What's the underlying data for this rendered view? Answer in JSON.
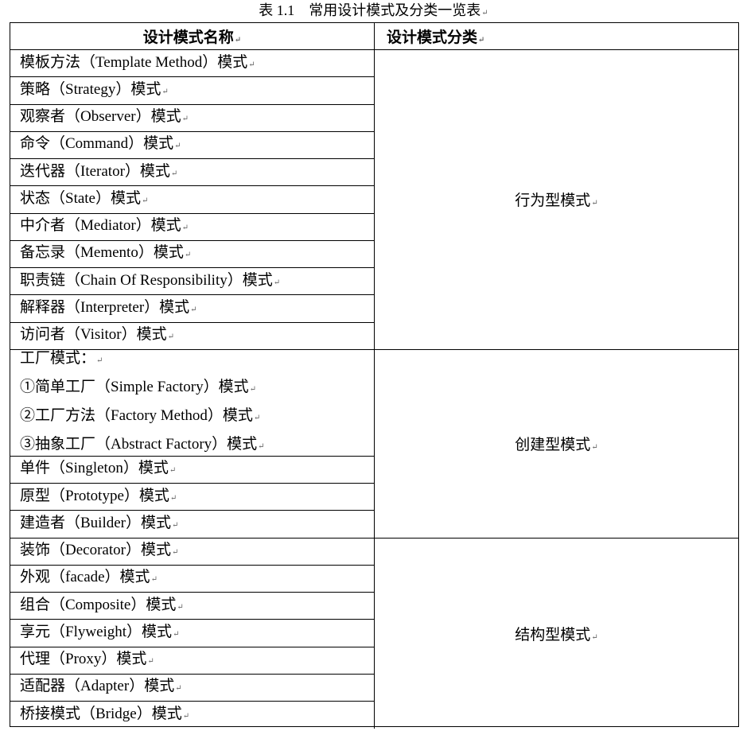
{
  "caption": "表 1.1　常用设计模式及分类一览表",
  "header": {
    "name_col": "设计模式名称",
    "category_col": "设计模式分类"
  },
  "groups": [
    {
      "category": "行为型模式",
      "rows": [
        [
          "模板方法（Template Method）模式"
        ],
        [
          "策略（Strategy）模式"
        ],
        [
          "观察者（Observer）模式"
        ],
        [
          "命令（Command）模式"
        ],
        [
          "迭代器（Iterator）模式"
        ],
        [
          "状态（State）模式"
        ],
        [
          "中介者（Mediator）模式"
        ],
        [
          "备忘录（Memento）模式"
        ],
        [
          "职责链（Chain Of Responsibility）模式"
        ],
        [
          "解释器（Interpreter）模式"
        ],
        [
          "访问者（Visitor）模式"
        ]
      ]
    },
    {
      "category": "创建型模式",
      "rows": [
        [
          "工厂模式：",
          "①简单工厂（Simple Factory）模式",
          "②工厂方法（Factory Method）模式",
          "③抽象工厂（Abstract Factory）模式"
        ],
        [
          "单件（Singleton）模式"
        ],
        [
          "原型（Prototype）模式"
        ],
        [
          "建造者（Builder）模式"
        ]
      ]
    },
    {
      "category": "结构型模式",
      "rows": [
        [
          "装饰（Decorator）模式"
        ],
        [
          "外观（facade）模式"
        ],
        [
          "组合（Composite）模式"
        ],
        [
          "享元（Flyweight）模式"
        ],
        [
          "代理（Proxy）模式"
        ],
        [
          "适配器（Adapter）模式"
        ],
        [
          "桥接模式（Bridge）模式"
        ]
      ]
    }
  ]
}
